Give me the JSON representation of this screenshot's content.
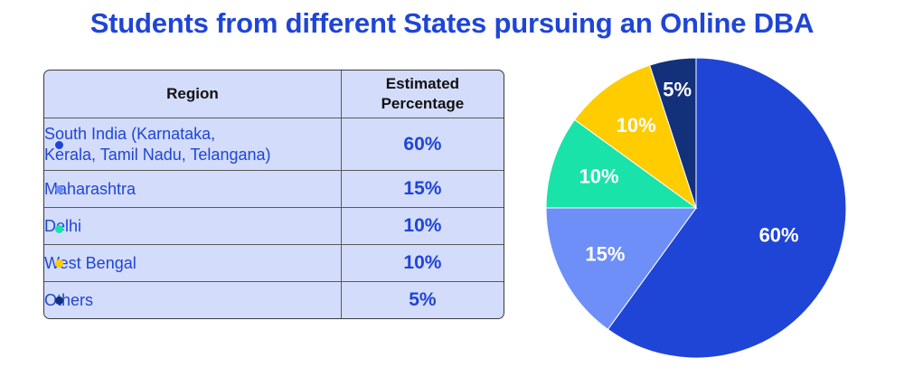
{
  "title": "Students from different States pursuing an Online DBA",
  "table": {
    "headers": {
      "region": "Region",
      "pct_line1": "Estimated",
      "pct_line2": "Percentage"
    },
    "rows": [
      {
        "region_line1": "South India (Karnataka,",
        "region_line2": "Kerala, Tamil Nadu, Telangana)",
        "percent": "60%",
        "dot_color": "#1f45d6"
      },
      {
        "region_line1": "Maharashtra",
        "region_line2": "",
        "percent": "15%",
        "dot_color": "#6e8ef8"
      },
      {
        "region_line1": "Delhi",
        "region_line2": "",
        "percent": "10%",
        "dot_color": "#19e3a9"
      },
      {
        "region_line1": "West Bengal",
        "region_line2": "",
        "percent": "10%",
        "dot_color": "#ffcc00"
      },
      {
        "region_line1": "Others",
        "region_line2": "",
        "percent": "5%",
        "dot_color": "#13307a"
      }
    ]
  },
  "chart_data": {
    "type": "pie",
    "title": "Students from different States pursuing an Online DBA",
    "categories": [
      "South India (Karnataka, Kerala, Tamil Nadu, Telangana)",
      "Maharashtra",
      "Delhi",
      "West Bengal",
      "Others"
    ],
    "values": [
      60,
      15,
      10,
      10,
      5
    ],
    "labels": [
      "60%",
      "15%",
      "10%",
      "10%",
      "5%"
    ],
    "colors": [
      "#1f45d6",
      "#6e8ef8",
      "#19e3a9",
      "#ffcc00",
      "#13307a"
    ],
    "label_colors": [
      "#ffffff",
      "#ffffff",
      "#ffffff",
      "#ffffff",
      "#ffffff"
    ],
    "start": "12 o'clock",
    "direction": "clockwise",
    "legend": "table"
  }
}
